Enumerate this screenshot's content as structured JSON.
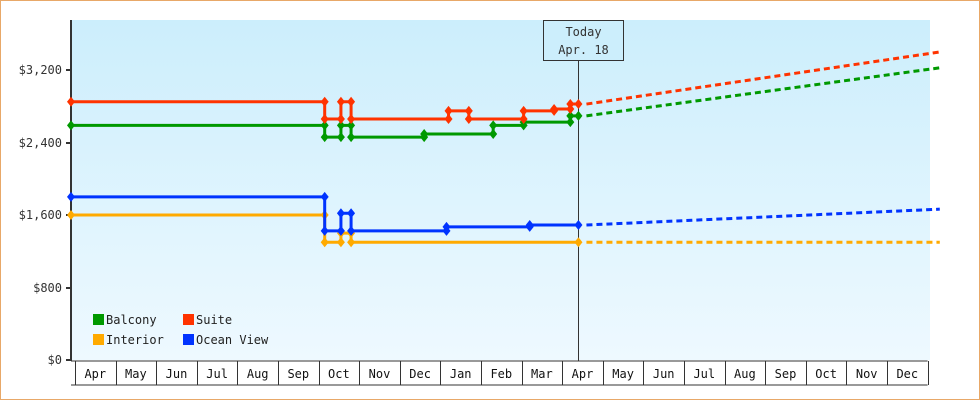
{
  "chart_data": {
    "type": "line",
    "title": "",
    "xlabel": "",
    "ylabel": "",
    "ylim": [
      0,
      3750
    ],
    "grid": false,
    "legend_position": "bottom-left (inside plot)",
    "y_ticks": [
      {
        "value": 0,
        "label": "$0"
      },
      {
        "value": 800,
        "label": "$800"
      },
      {
        "value": 1600,
        "label": "$1,600"
      },
      {
        "value": 2400,
        "label": "$2,400"
      },
      {
        "value": 3200,
        "label": "$3,200"
      }
    ],
    "x_months": [
      "Apr",
      "May",
      "Jun",
      "Jul",
      "Aug",
      "Sep",
      "Oct",
      "Nov",
      "Dec",
      "Jan",
      "Feb",
      "Mar",
      "Apr",
      "May",
      "Jun",
      "Jul",
      "Aug",
      "Sep",
      "Oct",
      "Nov",
      "Dec"
    ],
    "today_marker": {
      "line1": "Today",
      "line2": "Apr. 18",
      "month_index": 12.4
    },
    "series": [
      {
        "name": "Suite",
        "color": "#ff3300",
        "historical": [
          [
            0,
            2850
          ],
          [
            6.15,
            2850
          ],
          [
            6.15,
            2660
          ],
          [
            6.55,
            2660
          ],
          [
            6.55,
            2850
          ],
          [
            6.8,
            2850
          ],
          [
            6.8,
            2660
          ],
          [
            9.2,
            2660
          ],
          [
            9.2,
            2750
          ],
          [
            9.7,
            2750
          ],
          [
            9.7,
            2660
          ],
          [
            11.05,
            2660
          ],
          [
            11.05,
            2750
          ],
          [
            11.8,
            2750
          ],
          [
            11.8,
            2770
          ],
          [
            12.2,
            2770
          ],
          [
            12.2,
            2825
          ],
          [
            12.4,
            2825
          ]
        ],
        "projection": [
          [
            12.4,
            2825
          ],
          [
            21.3,
            3400
          ]
        ]
      },
      {
        "name": "Balcony",
        "color": "#009900",
        "historical": [
          [
            0,
            2590
          ],
          [
            6.15,
            2590
          ],
          [
            6.15,
            2460
          ],
          [
            6.55,
            2460
          ],
          [
            6.55,
            2590
          ],
          [
            6.8,
            2590
          ],
          [
            6.8,
            2460
          ],
          [
            8.6,
            2460
          ],
          [
            8.6,
            2495
          ],
          [
            10.3,
            2495
          ],
          [
            10.3,
            2590
          ],
          [
            11.05,
            2590
          ],
          [
            11.05,
            2625
          ],
          [
            12.2,
            2625
          ],
          [
            12.2,
            2695
          ],
          [
            12.4,
            2695
          ]
        ],
        "projection": [
          [
            12.4,
            2695
          ],
          [
            21.3,
            3225
          ]
        ]
      },
      {
        "name": "Ocean View",
        "color": "#0033ff",
        "historical": [
          [
            0,
            1800
          ],
          [
            6.15,
            1800
          ],
          [
            6.15,
            1425
          ],
          [
            6.55,
            1425
          ],
          [
            6.55,
            1620
          ],
          [
            6.8,
            1620
          ],
          [
            6.8,
            1425
          ],
          [
            9.15,
            1425
          ],
          [
            9.15,
            1470
          ],
          [
            11.2,
            1470
          ],
          [
            11.2,
            1490
          ],
          [
            12.4,
            1490
          ]
        ],
        "projection": [
          [
            12.4,
            1490
          ],
          [
            21.3,
            1665
          ]
        ]
      },
      {
        "name": "Interior",
        "color": "#ffaa00",
        "historical": [
          [
            0,
            1600
          ],
          [
            6.15,
            1600
          ],
          [
            6.15,
            1300
          ],
          [
            6.55,
            1300
          ],
          [
            6.55,
            1400
          ],
          [
            6.8,
            1400
          ],
          [
            6.8,
            1300
          ],
          [
            10.95,
            1300
          ],
          [
            12.4,
            1300
          ]
        ],
        "projection": [
          [
            12.4,
            1300
          ],
          [
            21.3,
            1300
          ]
        ]
      }
    ]
  },
  "legend": {
    "items": [
      {
        "label": "Balcony",
        "color": "#009900"
      },
      {
        "label": "Suite",
        "color": "#ff3300"
      },
      {
        "label": "Interior",
        "color": "#ffaa00"
      },
      {
        "label": "Ocean View",
        "color": "#0033ff"
      }
    ]
  },
  "colors": {
    "frame_border": "#e8a868",
    "plot_bg_top": "#cceefc",
    "plot_bg_bottom": "#eef9ff",
    "axis": "#333333"
  }
}
